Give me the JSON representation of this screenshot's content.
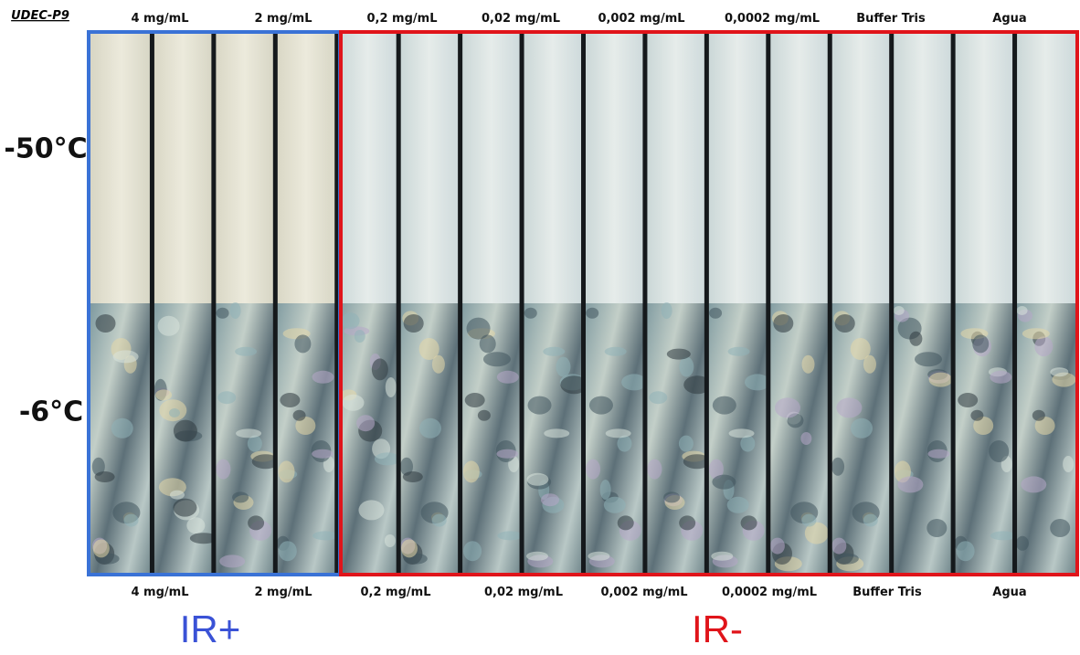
{
  "figure": {
    "sample": "UDEC-P9",
    "top_labels": [
      "4 mg/mL",
      "2 mg/mL",
      "0,2 mg/mL",
      "0,02 mg/mL",
      "0,002 mg/mL",
      "0,0002 mg/mL",
      "Buffer Tris",
      "Agua"
    ],
    "bottom_labels": [
      "4 mg/mL",
      "2 mg/mL",
      "0,2 mg/mL",
      "0,02 mg/mL",
      "0,002 mg/mL",
      "0,0002 mg/mL",
      "Buffer Tris",
      "Agua"
    ],
    "row_labels": [
      "-50°C",
      "-6°C"
    ],
    "group_labels": [
      "IR+",
      "IR-"
    ]
  }
}
